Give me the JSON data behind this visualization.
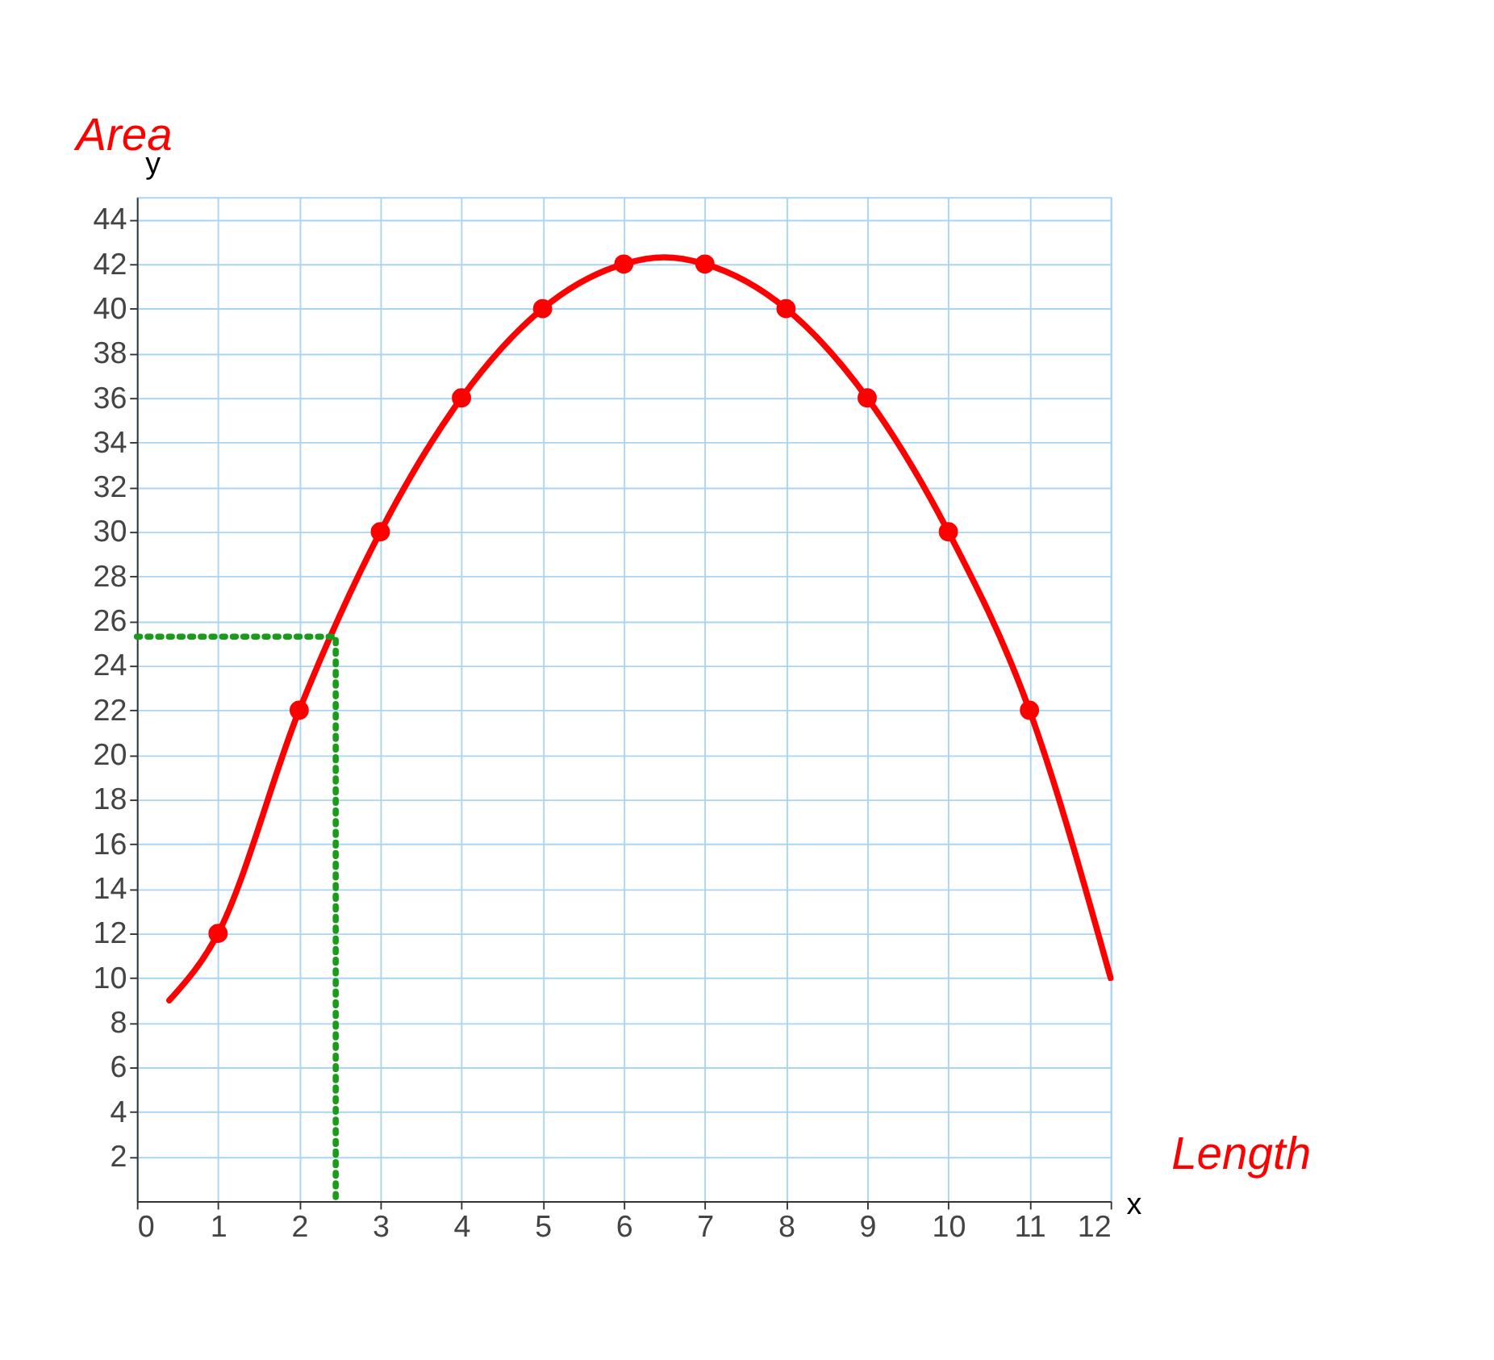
{
  "chart_data": {
    "type": "scatter",
    "xlabel": "x",
    "ylabel": "y",
    "annotations": [
      "Area",
      "Length"
    ],
    "xlim": [
      0,
      12
    ],
    "ylim": [
      0,
      45
    ],
    "xticks": [
      0,
      1,
      2,
      3,
      4,
      5,
      6,
      7,
      8,
      9,
      10,
      11,
      12
    ],
    "yticks": [
      2,
      4,
      6,
      8,
      10,
      12,
      14,
      16,
      18,
      20,
      22,
      24,
      26,
      28,
      30,
      32,
      34,
      36,
      38,
      40,
      42,
      44
    ],
    "grid": true,
    "marker": "circle",
    "series": [
      {
        "color": "#ff0000",
        "x": [
          1,
          2,
          3,
          4,
          5,
          6,
          7,
          8,
          9,
          10,
          11
        ],
        "values": [
          12,
          22,
          30,
          36,
          40,
          42,
          42,
          40,
          36,
          30,
          22
        ]
      },
      {
        "type": "line",
        "marker": "none",
        "color": "#ff0000",
        "line_style": "solid",
        "x": [
          0.4,
          1,
          2,
          3,
          4,
          5,
          6,
          6.5,
          7,
          8,
          9,
          10,
          11,
          12
        ],
        "values": [
          9,
          12,
          22,
          30,
          36,
          40,
          42,
          42.3,
          42,
          40,
          36,
          30,
          22,
          10
        ]
      },
      {
        "type": "line",
        "marker": "none",
        "color": "#1a9c1a",
        "line_style": "dotted",
        "x": [
          0,
          2.45,
          2.45
        ],
        "values": [
          25.3,
          25.3,
          0
        ]
      }
    ]
  }
}
